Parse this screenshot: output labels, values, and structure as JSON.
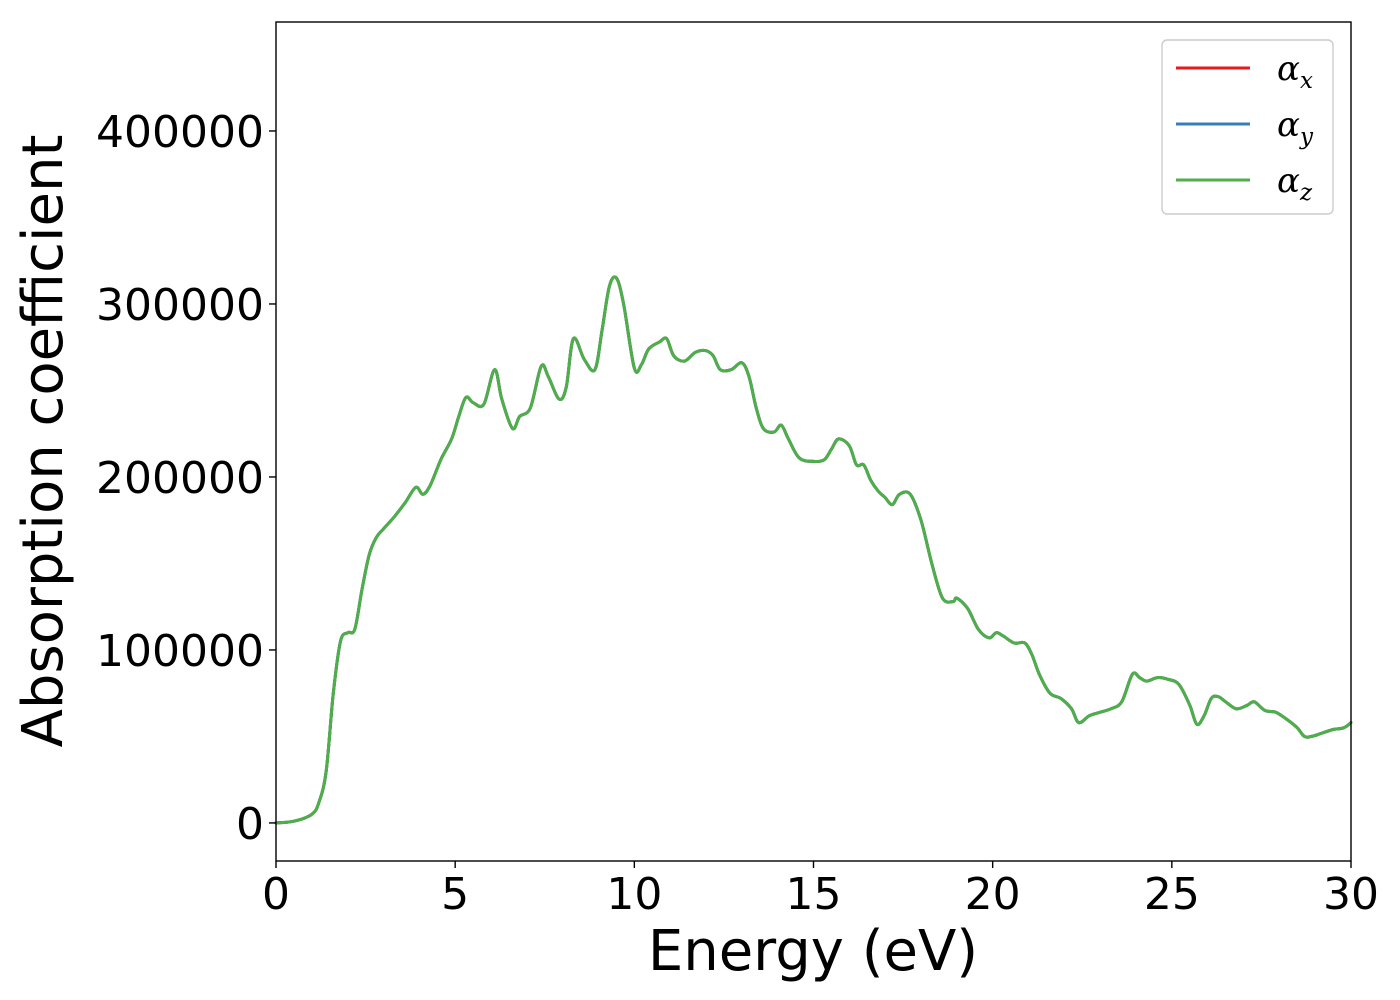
{
  "chart_data": {
    "type": "line",
    "title": "",
    "xlabel": "Energy (eV)",
    "ylabel": "Absorption coefficient",
    "xlim": [
      0,
      30
    ],
    "ylim": [
      -22000,
      463000
    ],
    "xticks": [
      0,
      5,
      10,
      15,
      20,
      25,
      30
    ],
    "xtick_labels": [
      "0",
      "5",
      "10",
      "15",
      "20",
      "25",
      "30"
    ],
    "yticks": [
      0,
      100000,
      200000,
      300000,
      400000
    ],
    "ytick_labels": [
      "0",
      "100000",
      "200000",
      "300000",
      "400000"
    ],
    "grid": false,
    "legend_position": "top-right",
    "series": [
      {
        "name": "α_x",
        "legend_symbol": "α",
        "legend_subscript": "x",
        "color": "#e41a1c",
        "x": [
          0,
          0.5,
          1.0,
          1.2,
          1.4,
          1.6,
          1.8,
          2.0,
          2.2,
          2.4,
          2.6,
          2.8,
          3.0,
          3.3,
          3.6,
          3.9,
          4.1,
          4.3,
          4.6,
          4.9,
          5.1,
          5.3,
          5.5,
          5.8,
          6.1,
          6.3,
          6.6,
          6.8,
          7.1,
          7.4,
          7.6,
          7.9,
          8.1,
          8.3,
          8.6,
          8.9,
          9.1,
          9.3,
          9.5,
          9.7,
          10.0,
          10.2,
          10.4,
          10.7,
          10.9,
          11.1,
          11.4,
          11.7,
          12.0,
          12.2,
          12.4,
          12.7,
          13.0,
          13.2,
          13.4,
          13.6,
          13.9,
          14.1,
          14.3,
          14.6,
          15.0,
          15.3,
          15.5,
          15.7,
          16.0,
          16.2,
          16.4,
          16.6,
          16.8,
          17.0,
          17.2,
          17.4,
          17.7,
          18.0,
          18.3,
          18.6,
          18.9,
          19.0,
          19.3,
          19.6,
          19.9,
          20.1,
          20.3,
          20.6,
          20.9,
          21.1,
          21.3,
          21.6,
          21.9,
          22.2,
          22.4,
          22.7,
          23.0,
          23.3,
          23.6,
          23.9,
          24.1,
          24.3,
          24.6,
          24.9,
          25.2,
          25.5,
          25.7,
          25.9,
          26.1,
          26.3,
          26.5,
          26.8,
          27.1,
          27.3,
          27.6,
          27.9,
          28.2,
          28.5,
          28.7,
          28.9,
          29.2,
          29.5,
          29.8,
          30.0
        ],
        "values": [
          0,
          1000,
          5000,
          12000,
          30000,
          75000,
          105000,
          110000,
          112000,
          135000,
          155000,
          165000,
          170000,
          177000,
          185000,
          194000,
          190000,
          195000,
          210000,
          222000,
          235000,
          246000,
          243000,
          242000,
          262000,
          245000,
          228000,
          235000,
          240000,
          264000,
          258000,
          245000,
          252000,
          280000,
          268000,
          262000,
          285000,
          310000,
          315000,
          300000,
          263000,
          265000,
          274000,
          278000,
          280000,
          270000,
          267000,
          272000,
          273000,
          270000,
          262000,
          262000,
          266000,
          258000,
          240000,
          228000,
          226000,
          230000,
          222000,
          211000,
          209000,
          210000,
          216000,
          222000,
          218000,
          207000,
          207000,
          198000,
          192000,
          188000,
          184000,
          190000,
          190000,
          175000,
          150000,
          130000,
          128000,
          130000,
          124000,
          112000,
          107000,
          110000,
          108000,
          104000,
          104000,
          97000,
          86000,
          75000,
          72000,
          66000,
          58000,
          62000,
          64000,
          66000,
          70000,
          86000,
          84000,
          82000,
          84000,
          83000,
          80000,
          68000,
          57000,
          62000,
          72000,
          73000,
          70000,
          66000,
          68000,
          70000,
          65000,
          64000,
          60000,
          55000,
          50000,
          50000,
          52000,
          54000,
          55000,
          58000
        ]
      },
      {
        "name": "α_y",
        "legend_symbol": "α",
        "legend_subscript": "y",
        "color": "#377eb8",
        "same_as": "α_x"
      },
      {
        "name": "α_z",
        "legend_symbol": "α",
        "legend_subscript": "z",
        "color": "#4daf4a",
        "same_as": "α_x"
      }
    ]
  }
}
